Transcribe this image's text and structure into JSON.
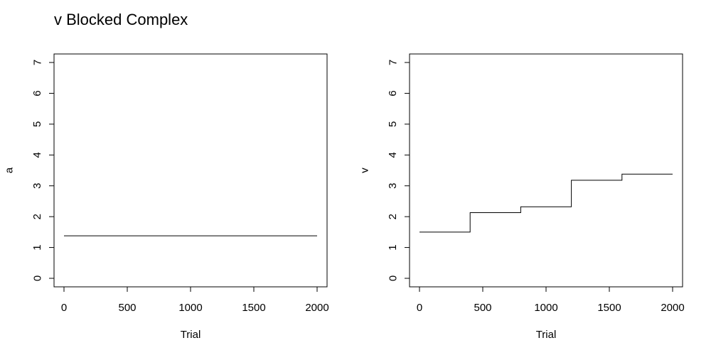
{
  "title": "v Blocked Complex",
  "chart_data": [
    {
      "type": "line",
      "xlabel": "Trial",
      "ylabel": "a",
      "xlim": [
        0,
        2000
      ],
      "ylim": [
        0,
        7
      ],
      "x_ticks": [
        "0",
        "500",
        "1000",
        "1500",
        "2000"
      ],
      "y_ticks": [
        "0",
        "1",
        "2",
        "3",
        "4",
        "5",
        "6",
        "7"
      ],
      "grid": false,
      "series": [
        {
          "x": [
            0,
            2000
          ],
          "y": [
            1.38,
            1.38
          ],
          "color": "#000000"
        }
      ]
    },
    {
      "type": "line",
      "xlabel": "Trial",
      "ylabel": "v",
      "xlim": [
        0,
        2000
      ],
      "ylim": [
        0,
        7
      ],
      "x_ticks": [
        "0",
        "500",
        "1000",
        "1500",
        "2000"
      ],
      "y_ticks": [
        "0",
        "1",
        "2",
        "3",
        "4",
        "5",
        "6",
        "7"
      ],
      "grid": false,
      "series": [
        {
          "step": true,
          "x": [
            0,
            400,
            800,
            1200,
            1600,
            2000
          ],
          "y": [
            1.5,
            2.13,
            2.32,
            3.18,
            3.38,
            3.38
          ],
          "color": "#000000"
        }
      ]
    }
  ]
}
